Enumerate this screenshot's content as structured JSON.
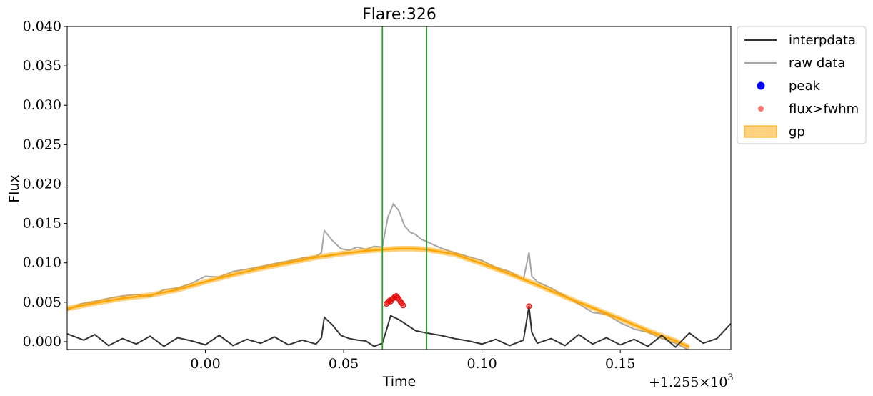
{
  "chart_data": {
    "type": "line",
    "title": "Flare:326",
    "xlabel": "Time",
    "ylabel": "Flux",
    "x_offset_label": "+1.255×10",
    "x_offset_exp": "3",
    "xlim": [
      -0.05,
      0.19
    ],
    "ylim": [
      -0.001,
      0.04
    ],
    "xticks": [
      0.0,
      0.05,
      0.1,
      0.15
    ],
    "xtick_labels": [
      "0.00",
      "0.05",
      "0.10",
      "0.15"
    ],
    "yticks": [
      0.0,
      0.005,
      0.01,
      0.015,
      0.02,
      0.025,
      0.03,
      0.035,
      0.04
    ],
    "ytick_labels": [
      "0.000",
      "0.005",
      "0.010",
      "0.015",
      "0.020",
      "0.025",
      "0.030",
      "0.035",
      "0.040"
    ],
    "grid": false,
    "legend_placement": "outside-top-right",
    "vlines": {
      "x": [
        0.064,
        0.08
      ],
      "color": "#2ca02c"
    },
    "colors": {
      "interpdata": "#333333",
      "raw": "#a6a6a6",
      "peak": "#0000ff",
      "fwhm": "#ff0000",
      "gp": "#ffa500"
    },
    "series": [
      {
        "name": "interpdata",
        "kind": "line",
        "x": [
          -0.05,
          -0.044,
          -0.04,
          -0.035,
          -0.03,
          -0.025,
          -0.02,
          -0.015,
          -0.01,
          -0.005,
          0.0,
          0.005,
          0.01,
          0.015,
          0.02,
          0.025,
          0.03,
          0.035,
          0.04,
          0.042,
          0.043,
          0.046,
          0.049,
          0.052,
          0.055,
          0.058,
          0.061,
          0.064,
          0.0655,
          0.067,
          0.07,
          0.073,
          0.076,
          0.08,
          0.085,
          0.09,
          0.095,
          0.1,
          0.105,
          0.11,
          0.115,
          0.117,
          0.118,
          0.12,
          0.125,
          0.13,
          0.135,
          0.14,
          0.145,
          0.15,
          0.155,
          0.16,
          0.165,
          0.17,
          0.175,
          0.18,
          0.185,
          0.19
        ],
        "y": [
          0.001,
          0.0002,
          0.0009,
          -0.0005,
          0.0004,
          -0.0003,
          0.0007,
          -0.0006,
          0.0005,
          0.0001,
          -0.0004,
          0.0008,
          -0.0005,
          0.0003,
          -0.0002,
          0.0006,
          -0.0004,
          0.0002,
          -0.0003,
          0.0005,
          0.0031,
          0.0021,
          0.0008,
          0.0004,
          0.0002,
          0.0001,
          -0.0006,
          -0.0002,
          0.0015,
          0.0033,
          0.0028,
          0.0021,
          0.0014,
          0.0011,
          0.0008,
          0.0004,
          0.0001,
          -0.0003,
          0.0003,
          -0.0005,
          0.0002,
          0.0045,
          0.0012,
          -0.0002,
          0.0004,
          -0.0005,
          0.0009,
          -0.0003,
          0.0005,
          -0.0004,
          0.0003,
          -0.0006,
          0.0008,
          -0.0007,
          0.0011,
          -0.0002,
          0.0004,
          0.0023
        ]
      },
      {
        "name": "raw data",
        "kind": "line",
        "x": [
          -0.05,
          -0.045,
          -0.04,
          -0.035,
          -0.03,
          -0.025,
          -0.02,
          -0.015,
          -0.01,
          -0.005,
          0.0,
          0.005,
          0.01,
          0.015,
          0.02,
          0.025,
          0.03,
          0.035,
          0.04,
          0.042,
          0.043,
          0.046,
          0.049,
          0.052,
          0.055,
          0.058,
          0.061,
          0.064,
          0.066,
          0.068,
          0.07,
          0.072,
          0.074,
          0.076,
          0.078,
          0.08,
          0.085,
          0.09,
          0.095,
          0.1,
          0.105,
          0.11,
          0.115,
          0.117,
          0.118,
          0.12,
          0.125,
          0.13,
          0.135,
          0.14,
          0.145,
          0.15,
          0.155,
          0.16,
          0.165,
          0.17,
          0.175,
          0.18
        ],
        "y": [
          0.004,
          0.0048,
          0.0051,
          0.0055,
          0.0058,
          0.006,
          0.0057,
          0.0066,
          0.0068,
          0.0074,
          0.0083,
          0.0082,
          0.0089,
          0.0092,
          0.0095,
          0.0099,
          0.0102,
          0.0106,
          0.0108,
          0.0113,
          0.0141,
          0.0128,
          0.0118,
          0.0116,
          0.012,
          0.0117,
          0.0121,
          0.012,
          0.0158,
          0.0175,
          0.0166,
          0.0147,
          0.0139,
          0.0136,
          0.013,
          0.0127,
          0.0119,
          0.0113,
          0.0108,
          0.0103,
          0.0094,
          0.0089,
          0.0079,
          0.0113,
          0.0083,
          0.0076,
          0.0068,
          0.0058,
          0.0048,
          0.0037,
          0.0035,
          0.0024,
          0.0016,
          0.0012,
          0.0004,
          -0.0002,
          -0.0011,
          -0.0018
        ]
      },
      {
        "name": "gp",
        "kind": "band",
        "x": [
          -0.05,
          -0.04,
          -0.03,
          -0.02,
          -0.01,
          0.0,
          0.01,
          0.02,
          0.03,
          0.04,
          0.05,
          0.06,
          0.07,
          0.075,
          0.08,
          0.09,
          0.1,
          0.11,
          0.12,
          0.13,
          0.14,
          0.15,
          0.16,
          0.17,
          0.175
        ],
        "y": [
          0.0042,
          0.0049,
          0.0055,
          0.0059,
          0.0066,
          0.0076,
          0.0085,
          0.0093,
          0.01,
          0.0107,
          0.0112,
          0.0116,
          0.0118,
          0.0118,
          0.0117,
          0.0111,
          0.0099,
          0.0086,
          0.0072,
          0.0057,
          0.0043,
          0.0029,
          0.0014,
          0.0001,
          -0.0007
        ],
        "band": 0.00035
      },
      {
        "name": "flux>fwhm",
        "kind": "scatter",
        "x": [
          0.0655,
          0.066,
          0.0665,
          0.067,
          0.0675,
          0.068,
          0.0685,
          0.069,
          0.0695,
          0.07,
          0.0705,
          0.071,
          0.0715,
          0.117
        ],
        "y": [
          0.0048,
          0.005,
          0.0052,
          0.0051,
          0.0054,
          0.0055,
          0.0057,
          0.0058,
          0.0056,
          0.0054,
          0.0051,
          0.0049,
          0.0046,
          0.0045
        ]
      },
      {
        "name": "peak",
        "kind": "scatter",
        "x": [],
        "y": []
      }
    ],
    "legend": [
      "interpdata",
      "raw data",
      "peak",
      "flux>fwhm",
      "gp"
    ]
  }
}
